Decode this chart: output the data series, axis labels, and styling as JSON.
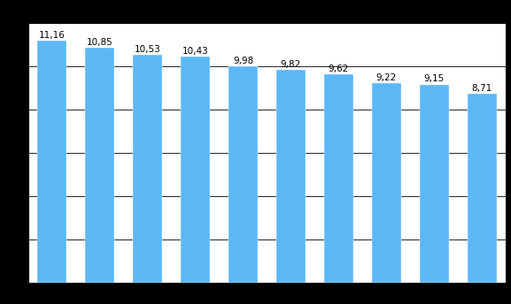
{
  "values": [
    11.16,
    10.85,
    10.53,
    10.43,
    9.98,
    9.82,
    9.62,
    9.22,
    9.15,
    8.71
  ],
  "bar_color": "#5BB8F5",
  "chart_bg": "#ffffff",
  "fig_bg": "#000000",
  "ylim": [
    0,
    12
  ],
  "grid_color": "#000000",
  "grid_linewidth": 0.6,
  "bar_edge_color": "#ffffff",
  "label_fontsize": 7.5,
  "label_color": "#000000",
  "bar_width": 0.62
}
